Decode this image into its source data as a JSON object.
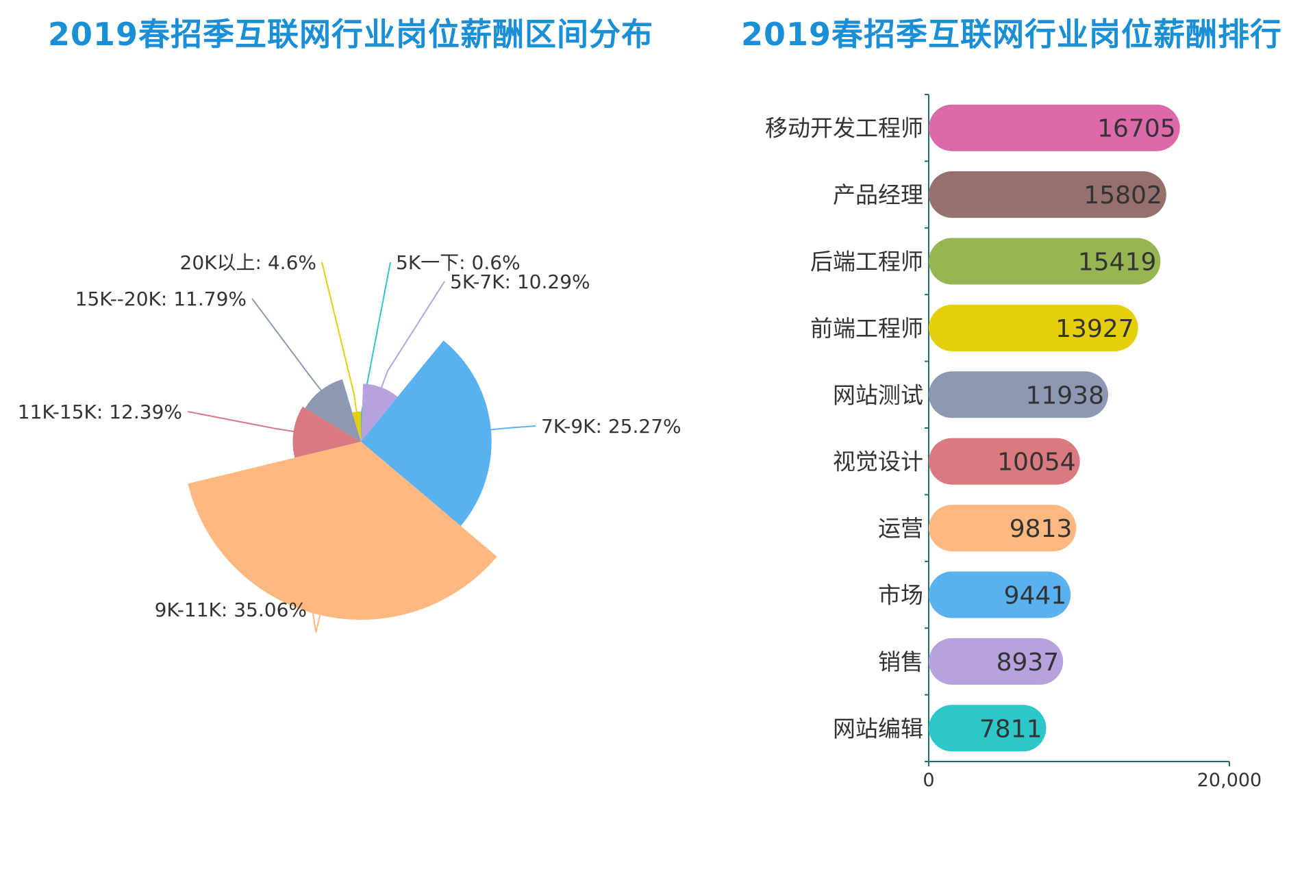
{
  "chart_data": [
    {
      "type": "pie",
      "variant": "rose",
      "title": "2019春招季互联网行业岗位薪酬区间分布",
      "slices": [
        {
          "label": "5K一下: 0.6%",
          "name": "5K一下",
          "value": 0.6,
          "color": "#2ec7c9"
        },
        {
          "label": "5K-7K: 10.29%",
          "name": "5K-7K",
          "value": 10.29,
          "color": "#b6a2de"
        },
        {
          "label": "7K-9K: 25.27%",
          "name": "7K-9K",
          "value": 25.27,
          "color": "#5ab1ef"
        },
        {
          "label": "9K-11K: 35.06%",
          "name": "9K-11K",
          "value": 35.06,
          "color": "#ffb980"
        },
        {
          "label": "11K-15K: 12.39%",
          "name": "11K-15K",
          "value": 12.39,
          "color": "#d87a80"
        },
        {
          "label": "15K--20K: 11.79%",
          "name": "15K--20K",
          "value": 11.79,
          "color": "#8d98b3"
        },
        {
          "label": "20K以上: 4.6%",
          "name": "20K以上",
          "value": 4.6,
          "color": "#e5cf0d"
        }
      ]
    },
    {
      "type": "bar",
      "orientation": "horizontal",
      "title": "2019春招季互联网行业岗位薪酬排行",
      "categories": [
        "移动开发工程师",
        "产品经理",
        "后端工程师",
        "前端工程师",
        "网站测试",
        "视觉设计",
        "运营",
        "市场",
        "销售",
        "网站编辑"
      ],
      "values": [
        16705,
        15802,
        15419,
        13927,
        11938,
        10054,
        9813,
        9441,
        8937,
        7811
      ],
      "colors": [
        "#dc69aa",
        "#95706d",
        "#97b552",
        "#e5cf0d",
        "#8d98b3",
        "#d87a80",
        "#ffb980",
        "#5ab1ef",
        "#b6a2de",
        "#2ec7c9"
      ],
      "xlim": [
        0,
        20000
      ],
      "xticks": [
        "0",
        "20,000"
      ]
    }
  ]
}
